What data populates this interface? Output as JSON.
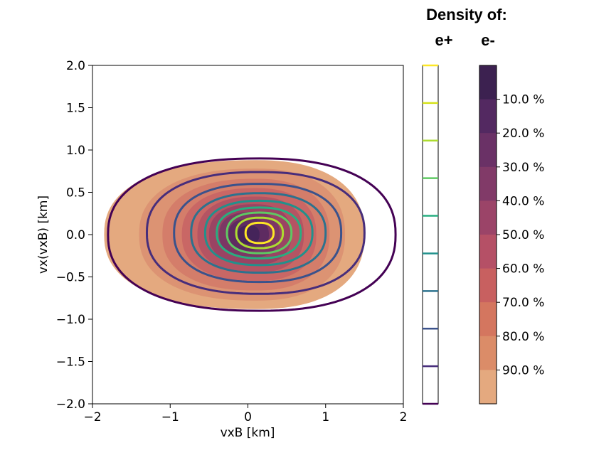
{
  "chart_data": {
    "type": "contour",
    "title": "",
    "legend_title": "Density of:",
    "legend_series": [
      "e+",
      "e-"
    ],
    "xlabel": "vxB [km]",
    "ylabel": "vx(vxB) [km]",
    "xlim": [
      -2,
      2
    ],
    "ylim": [
      -2,
      2
    ],
    "xticks": [
      -2,
      -1,
      0,
      1,
      2
    ],
    "xtick_labels": [
      "−2",
      "−1",
      "0",
      "1",
      "2"
    ],
    "yticks": [
      2.0,
      1.5,
      1.0,
      0.5,
      0.0,
      -0.5,
      -1.0,
      -1.5,
      -2.0
    ],
    "ytick_labels": [
      "2.0",
      "1.5",
      "1.0",
      "0.5",
      "0.0",
      "−0.5",
      "−1.0",
      "−1.5",
      "−2.0"
    ],
    "series": [
      {
        "name": "e+",
        "style": "line contours",
        "colors": [
          "#440154",
          "#472d7b",
          "#3b528b",
          "#2c728e",
          "#21918c",
          "#28ae80",
          "#5ec962",
          "#addc30",
          "#fde725"
        ],
        "contours": [
          {
            "cx": 0.15,
            "cy": 0.0,
            "rx_left": 1.95,
            "rx_right": 1.75,
            "ry_top": 0.9,
            "ry_bottom": 0.9
          },
          {
            "cx": 0.15,
            "cy": 0.02,
            "rx_left": 1.45,
            "rx_right": 1.35,
            "ry_top": 0.72,
            "ry_bottom": 0.72
          },
          {
            "cx": 0.15,
            "cy": 0.02,
            "rx_left": 1.1,
            "rx_right": 1.05,
            "ry_top": 0.58,
            "ry_bottom": 0.58
          },
          {
            "cx": 0.15,
            "cy": 0.02,
            "rx_left": 0.88,
            "rx_right": 0.85,
            "ry_top": 0.47,
            "ry_bottom": 0.47
          },
          {
            "cx": 0.15,
            "cy": 0.02,
            "rx_left": 0.7,
            "rx_right": 0.68,
            "ry_top": 0.38,
            "ry_bottom": 0.38
          },
          {
            "cx": 0.15,
            "cy": 0.02,
            "rx_left": 0.55,
            "rx_right": 0.53,
            "ry_top": 0.3,
            "ry_bottom": 0.3
          },
          {
            "cx": 0.15,
            "cy": 0.02,
            "rx_left": 0.42,
            "rx_right": 0.41,
            "ry_top": 0.24,
            "ry_bottom": 0.24
          },
          {
            "cx": 0.15,
            "cy": 0.02,
            "rx_left": 0.3,
            "rx_right": 0.3,
            "ry_top": 0.18,
            "ry_bottom": 0.18
          },
          {
            "cx": 0.15,
            "cy": 0.02,
            "rx_left": 0.18,
            "rx_right": 0.18,
            "ry_top": 0.12,
            "ry_bottom": 0.12
          }
        ],
        "colorbar_colors_bottom_to_top": [
          "#440154",
          "#472d7b",
          "#3b528b",
          "#2c728e",
          "#21918c",
          "#28ae80",
          "#5ec962",
          "#addc30",
          "#d5e21a",
          "#fde725"
        ]
      },
      {
        "name": "e-",
        "style": "filled contours",
        "levels": [
          {
            "label": "90.0 %",
            "color": "#e4a97f",
            "cx": 0.1,
            "cy": 0.0,
            "rx_left": 1.95,
            "rx_right": 1.4,
            "ry": 0.88
          },
          {
            "label": "80.0 %",
            "color": "#dc9373",
            "cx": 0.1,
            "cy": 0.0,
            "rx_left": 1.5,
            "rx_right": 1.15,
            "ry": 0.78
          },
          {
            "label": "70.0 %",
            "color": "#d47d6a",
            "cx": 0.1,
            "cy": 0.0,
            "rx_left": 1.2,
            "rx_right": 0.95,
            "ry": 0.66
          },
          {
            "label": "60.0 %",
            "color": "#c96765",
            "cx": 0.1,
            "cy": 0.0,
            "rx_left": 0.95,
            "rx_right": 0.78,
            "ry": 0.55
          },
          {
            "label": "50.0 %",
            "color": "#b45463",
            "cx": 0.1,
            "cy": 0.0,
            "rx_left": 0.75,
            "rx_right": 0.62,
            "ry": 0.45
          },
          {
            "label": "40.0 %",
            "color": "#9a4463",
            "cx": 0.08,
            "cy": 0.0,
            "rx_left": 0.58,
            "rx_right": 0.48,
            "ry": 0.36
          },
          {
            "label": "30.0 %",
            "color": "#7c3764",
            "cx": 0.05,
            "cy": 0.0,
            "rx_left": 0.42,
            "rx_right": 0.36,
            "ry": 0.27
          },
          {
            "label": "20.0 %",
            "color": "#5e2b61",
            "cx": 0.03,
            "cy": 0.0,
            "rx_left": 0.28,
            "rx_right": 0.24,
            "ry": 0.19
          },
          {
            "label": "10.0 %",
            "color": "#45245a",
            "cx": 0.02,
            "cy": 0.0,
            "rx_left": 0.15,
            "rx_right": 0.13,
            "ry": 0.11
          }
        ],
        "colorbar_labels": [
          "10.0 %",
          "20.0 %",
          "30.0 %",
          "40.0 %",
          "50.0 %",
          "60.0 %",
          "70.0 %",
          "80.0 %",
          "90.0 %"
        ],
        "colorbar_colors_top_to_bottom": [
          "#3c2150",
          "#532961",
          "#6a3166",
          "#813a68",
          "#9b4468",
          "#b55066",
          "#c86060",
          "#d4765f",
          "#db8c68",
          "#e4a97f"
        ]
      }
    ]
  }
}
